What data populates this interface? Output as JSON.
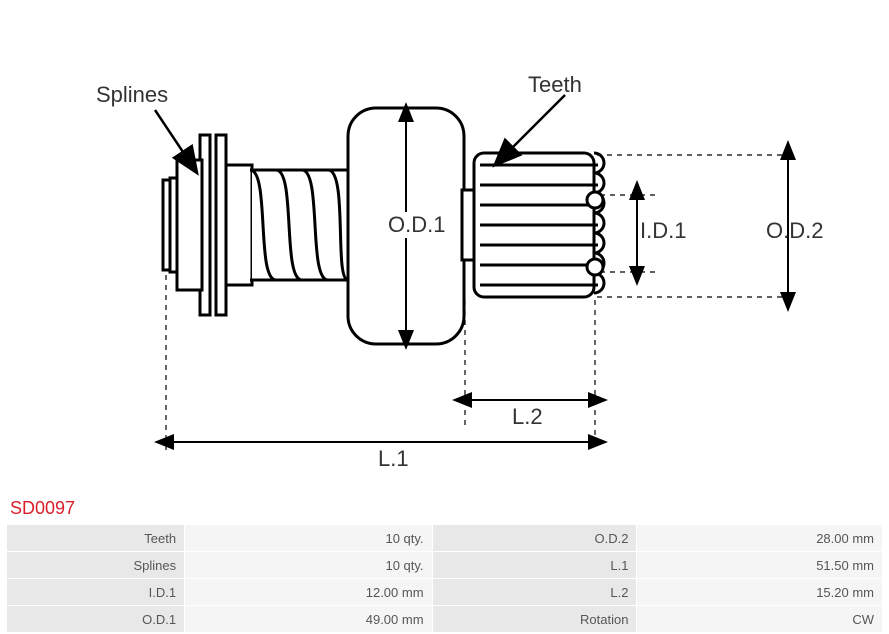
{
  "part_id": "SD0097",
  "diagram": {
    "labels": {
      "splines": "Splines",
      "teeth": "Teeth",
      "od1": "O.D.1",
      "od2": "O.D.2",
      "id1": "I.D.1",
      "l1": "L.1",
      "l2": "L.2"
    },
    "colors": {
      "stroke": "#000000",
      "fill": "#ffffff",
      "text": "#333333",
      "part_id": "#d9202a",
      "table_key_bg": "#e8e8e8",
      "table_val_bg": "#f5f5f5",
      "table_text": "#565656"
    },
    "stroke_width_main": 3,
    "stroke_width_thin": 1.5,
    "label_fontsize": 22
  },
  "specs": {
    "rows": [
      {
        "k1": "Teeth",
        "v1": "10 qty.",
        "k2": "O.D.2",
        "v2": "28.00 mm"
      },
      {
        "k1": "Splines",
        "v1": "10 qty.",
        "k2": "L.1",
        "v2": "51.50 mm"
      },
      {
        "k1": "I.D.1",
        "v1": "12.00 mm",
        "k2": "L.2",
        "v2": "15.20 mm"
      },
      {
        "k1": "O.D.1",
        "v1": "49.00 mm",
        "k2": "Rotation",
        "v2": "CW"
      }
    ]
  }
}
